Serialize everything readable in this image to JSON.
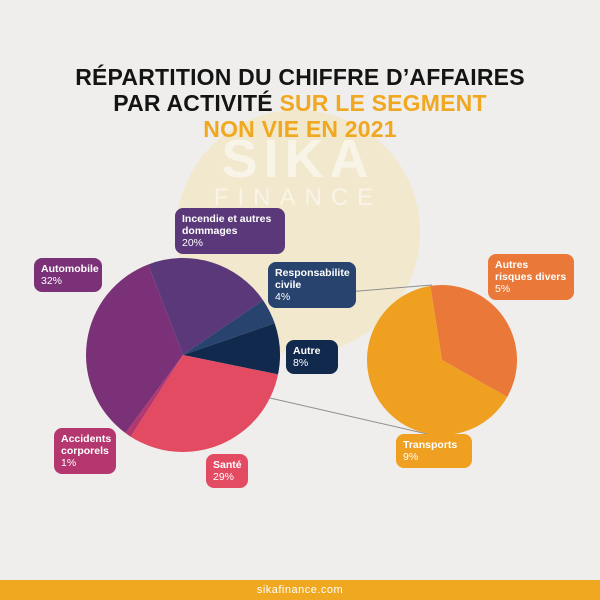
{
  "title": {
    "line1": "RÉPARTITION DU CHIFFRE D’AFFAIRES",
    "line2_dark": "PAR ACTIVITÉ",
    "line2_accent": "SUR LE SEGMENT",
    "line3_accent": "NON VIE EN 2021"
  },
  "watermark": {
    "line1": "SIKA",
    "line2": "FINANCE"
  },
  "footer": {
    "text": "sikafinance.com"
  },
  "colors": {
    "title_accent": "#f0a820",
    "automobile": "#7b3178",
    "incendie": "#5a3879",
    "responsabilite": "#27436e",
    "autre": "#11294d",
    "sante": "#e34b62",
    "accidents": "#b4386f",
    "transports": "#f0a020",
    "autres_risques": "#ea7838",
    "footer": "#f0a820"
  },
  "chart_data": [
    {
      "type": "pie",
      "title": "RÉPARTITION DU CHIFFRE D’AFFAIRES PAR ACTIVITÉ SUR LE SEGMENT NON VIE EN 2021",
      "slices": [
        {
          "label": "Incendie et autres dommages",
          "value": 20,
          "display": "20%",
          "color": "#5a3879"
        },
        {
          "label": "Responsabilite civile",
          "value": 4,
          "display": "4%",
          "color": "#27436e"
        },
        {
          "label": "Autre",
          "value": 8,
          "display": "8%",
          "color": "#11294d"
        },
        {
          "label": "Santé",
          "value": 29,
          "display": "29%",
          "color": "#e34b62"
        },
        {
          "label": "Accidents corporels",
          "value": 1,
          "display": "1%",
          "color": "#b4386f"
        },
        {
          "label": "Automobile",
          "value": 32,
          "display": "32%",
          "color": "#7b3178"
        }
      ]
    },
    {
      "type": "pie",
      "slices": [
        {
          "label": "Autres risques divers",
          "value": 5,
          "display": "5%",
          "color": "#ea7838"
        },
        {
          "label": "Transports",
          "value": 9,
          "display": "9%",
          "color": "#f0a020"
        }
      ]
    }
  ]
}
